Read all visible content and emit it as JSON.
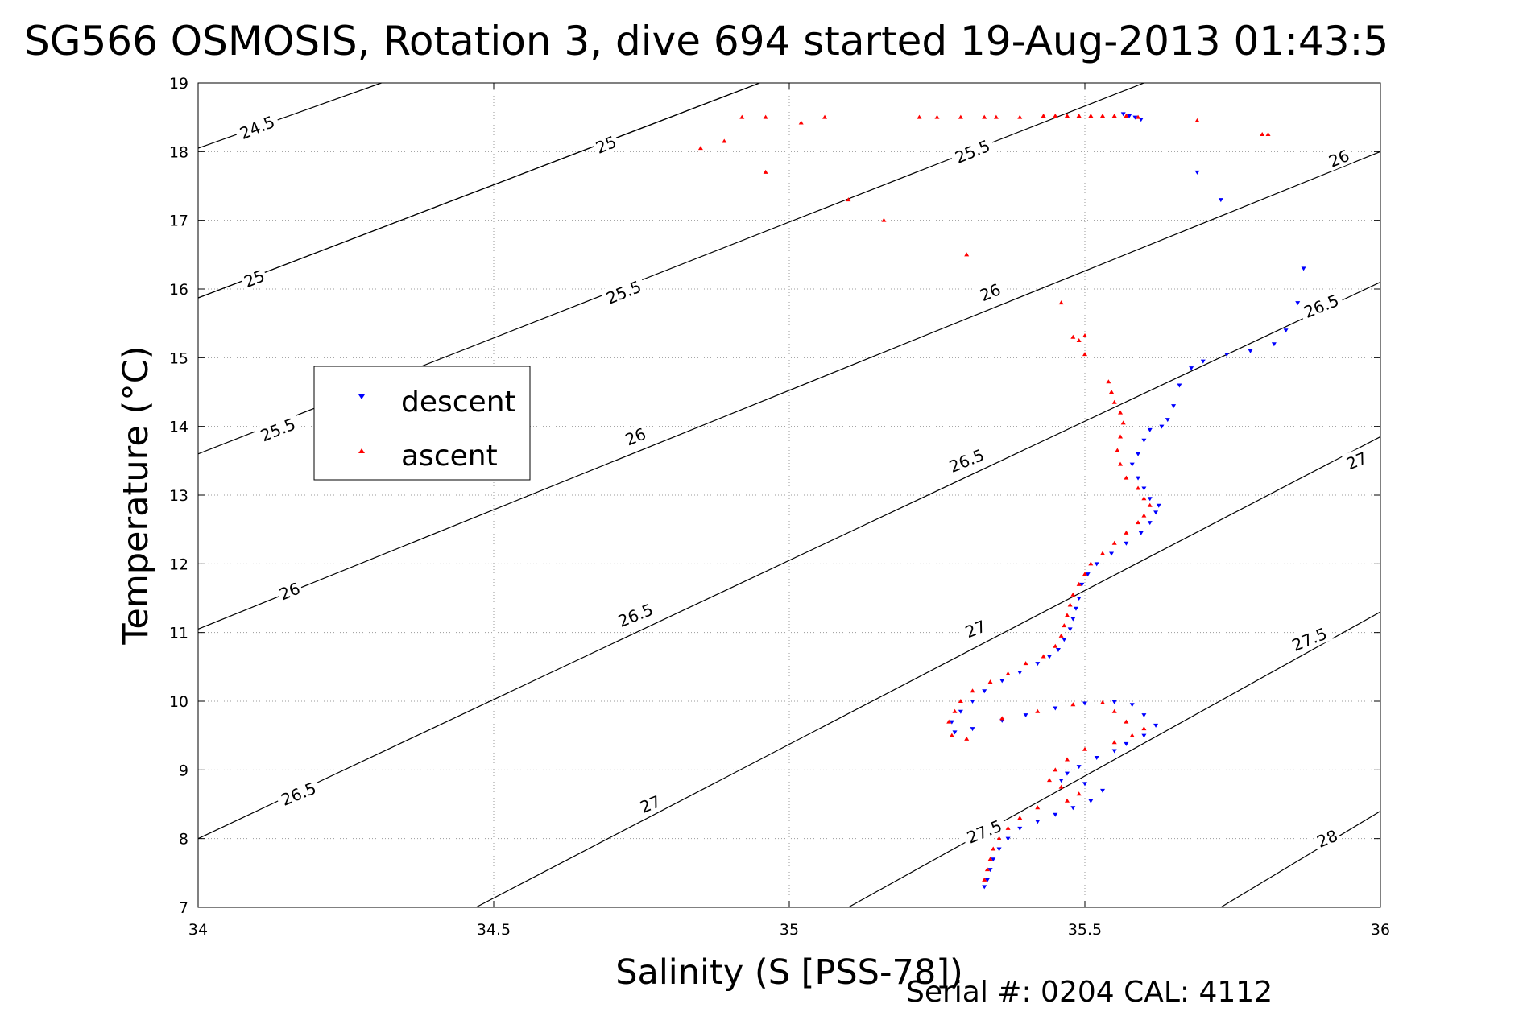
{
  "chart_data": {
    "type": "scatter",
    "title": "SG566 OSMOSIS, Rotation 3, dive 694 started 19-Aug-2013 01:43:5",
    "xlabel": "Salinity (S [PSS-78])",
    "ylabel": "Temperature (°C)",
    "xlim": [
      34,
      36
    ],
    "ylim": [
      7,
      19
    ],
    "xticks": [
      34,
      34.5,
      35,
      35.5,
      36
    ],
    "xtick_labels": [
      "34",
      "34.5",
      "35",
      "35.5",
      "36"
    ],
    "yticks": [
      7,
      8,
      9,
      10,
      11,
      12,
      13,
      14,
      15,
      16,
      17,
      18,
      19
    ],
    "ytick_labels": [
      "7",
      "8",
      "9",
      "10",
      "11",
      "12",
      "13",
      "14",
      "15",
      "16",
      "17",
      "18",
      "19"
    ],
    "grid": true,
    "legend_position": "left",
    "density_contours": {
      "levels": [
        24.5,
        25,
        25.5,
        26,
        26.5,
        27,
        27.5,
        28
      ],
      "lines": [
        {
          "level": 24.5,
          "points": [
            [
              34.0,
              18.05
            ],
            [
              34.31,
              19.0
            ]
          ]
        },
        {
          "level": 25,
          "points": [
            [
              34.0,
              15.87
            ],
            [
              34.95,
              19.0
            ]
          ]
        },
        {
          "level": 25,
          "points": [
            [
              34.0,
              15.87
            ],
            [
              34.95,
              19.0
            ]
          ]
        },
        {
          "level": 25.5,
          "points": [
            [
              34.0,
              13.6
            ],
            [
              35.6,
              19.0
            ]
          ]
        },
        {
          "level": 26,
          "points": [
            [
              34.0,
              11.05
            ],
            [
              36.0,
              18.0
            ]
          ]
        },
        {
          "level": 26.5,
          "points": [
            [
              34.0,
              8.0
            ],
            [
              36.0,
              16.1
            ]
          ]
        },
        {
          "level": 27,
          "points": [
            [
              34.47,
              7.0
            ],
            [
              36.0,
              13.85
            ]
          ]
        },
        {
          "level": 27.5,
          "points": [
            [
              35.1,
              7.0
            ],
            [
              36.0,
              11.3
            ]
          ]
        },
        {
          "level": 28,
          "points": [
            [
              35.73,
              7.0
            ],
            [
              36.0,
              8.4
            ]
          ]
        }
      ],
      "labels": [
        {
          "text": "24.5",
          "s": 34.1,
          "t": 18.35
        },
        {
          "text": "25",
          "s": 34.69,
          "t": 18.1
        },
        {
          "text": "25",
          "s": 34.095,
          "t": 16.15
        },
        {
          "text": "25.5",
          "s": 35.31,
          "t": 18.0
        },
        {
          "text": "25.5",
          "s": 34.72,
          "t": 15.95
        },
        {
          "text": "25.5",
          "s": 34.135,
          "t": 13.95
        },
        {
          "text": "26",
          "s": 35.93,
          "t": 17.9
        },
        {
          "text": "26",
          "s": 35.34,
          "t": 15.95
        },
        {
          "text": "26",
          "s": 34.74,
          "t": 13.85
        },
        {
          "text": "26",
          "s": 34.155,
          "t": 11.6
        },
        {
          "text": "26.5",
          "s": 35.9,
          "t": 15.75
        },
        {
          "text": "26.5",
          "s": 35.3,
          "t": 13.5
        },
        {
          "text": "26.5",
          "s": 34.74,
          "t": 11.25
        },
        {
          "text": "26.5",
          "s": 34.17,
          "t": 8.65
        },
        {
          "text": "27",
          "s": 35.96,
          "t": 13.5
        },
        {
          "text": "27",
          "s": 35.315,
          "t": 11.05
        },
        {
          "text": "27",
          "s": 34.765,
          "t": 8.5
        },
        {
          "text": "27.5",
          "s": 35.88,
          "t": 10.9
        },
        {
          "text": "27.5",
          "s": 35.33,
          "t": 8.1
        },
        {
          "text": "28",
          "s": 35.91,
          "t": 8.0
        }
      ]
    },
    "series": [
      {
        "name": "descent",
        "color": "#0000ff",
        "marker": "triangle-down",
        "points": [
          [
            35.565,
            18.55
          ],
          [
            35.575,
            18.52
          ],
          [
            35.585,
            18.5
          ],
          [
            35.595,
            18.47
          ],
          [
            35.69,
            17.7
          ],
          [
            35.73,
            17.3
          ],
          [
            35.87,
            16.3
          ],
          [
            35.86,
            15.8
          ],
          [
            35.84,
            15.4
          ],
          [
            35.82,
            15.2
          ],
          [
            35.78,
            15.1
          ],
          [
            35.74,
            15.05
          ],
          [
            35.7,
            14.95
          ],
          [
            35.68,
            14.85
          ],
          [
            35.66,
            14.6
          ],
          [
            35.65,
            14.3
          ],
          [
            35.64,
            14.1
          ],
          [
            35.63,
            14.0
          ],
          [
            35.61,
            13.95
          ],
          [
            35.6,
            13.8
          ],
          [
            35.59,
            13.6
          ],
          [
            35.58,
            13.45
          ],
          [
            35.59,
            13.25
          ],
          [
            35.6,
            13.1
          ],
          [
            35.61,
            12.95
          ],
          [
            35.625,
            12.85
          ],
          [
            35.62,
            12.75
          ],
          [
            35.61,
            12.6
          ],
          [
            35.595,
            12.45
          ],
          [
            35.57,
            12.3
          ],
          [
            35.545,
            12.15
          ],
          [
            35.52,
            12.0
          ],
          [
            35.505,
            11.85
          ],
          [
            35.495,
            11.7
          ],
          [
            35.49,
            11.5
          ],
          [
            35.485,
            11.35
          ],
          [
            35.48,
            11.2
          ],
          [
            35.475,
            11.05
          ],
          [
            35.465,
            10.9
          ],
          [
            35.455,
            10.75
          ],
          [
            35.44,
            10.65
          ],
          [
            35.42,
            10.55
          ],
          [
            35.39,
            10.42
          ],
          [
            35.36,
            10.3
          ],
          [
            35.33,
            10.15
          ],
          [
            35.31,
            10.0
          ],
          [
            35.29,
            9.85
          ],
          [
            35.275,
            9.7
          ],
          [
            35.28,
            9.55
          ],
          [
            35.31,
            9.6
          ],
          [
            35.36,
            9.72
          ],
          [
            35.4,
            9.8
          ],
          [
            35.45,
            9.9
          ],
          [
            35.5,
            9.97
          ],
          [
            35.55,
            9.99
          ],
          [
            35.58,
            9.95
          ],
          [
            35.6,
            9.8
          ],
          [
            35.62,
            9.65
          ],
          [
            35.6,
            9.5
          ],
          [
            35.57,
            9.38
          ],
          [
            35.55,
            9.28
          ],
          [
            35.52,
            9.18
          ],
          [
            35.49,
            9.05
          ],
          [
            35.47,
            8.95
          ],
          [
            35.46,
            8.85
          ],
          [
            35.5,
            8.8
          ],
          [
            35.53,
            8.7
          ],
          [
            35.51,
            8.55
          ],
          [
            35.48,
            8.45
          ],
          [
            35.45,
            8.35
          ],
          [
            35.42,
            8.25
          ],
          [
            35.39,
            8.15
          ],
          [
            35.37,
            8.0
          ],
          [
            35.355,
            7.85
          ],
          [
            35.345,
            7.7
          ],
          [
            35.34,
            7.55
          ],
          [
            35.335,
            7.4
          ],
          [
            35.33,
            7.3
          ]
        ]
      },
      {
        "name": "ascent",
        "color": "#ff0000",
        "marker": "triangle-up",
        "points": [
          [
            34.85,
            18.05
          ],
          [
            34.89,
            18.15
          ],
          [
            34.92,
            18.5
          ],
          [
            34.96,
            18.5
          ],
          [
            34.96,
            17.7
          ],
          [
            35.02,
            18.42
          ],
          [
            35.06,
            18.5
          ],
          [
            35.1,
            17.3
          ],
          [
            35.16,
            17.0
          ],
          [
            35.22,
            18.5
          ],
          [
            35.25,
            18.5
          ],
          [
            35.29,
            18.5
          ],
          [
            35.3,
            16.5
          ],
          [
            35.33,
            18.5
          ],
          [
            35.35,
            18.5
          ],
          [
            35.39,
            18.5
          ],
          [
            35.43,
            18.52
          ],
          [
            35.45,
            18.52
          ],
          [
            35.47,
            18.52
          ],
          [
            35.49,
            18.52
          ],
          [
            35.51,
            18.52
          ],
          [
            35.53,
            18.52
          ],
          [
            35.55,
            18.52
          ],
          [
            35.57,
            18.52
          ],
          [
            35.59,
            18.5
          ],
          [
            35.69,
            18.45
          ],
          [
            35.8,
            18.25
          ],
          [
            35.81,
            18.25
          ],
          [
            35.46,
            15.8
          ],
          [
            35.48,
            15.3
          ],
          [
            35.49,
            15.25
          ],
          [
            35.5,
            15.32
          ],
          [
            35.5,
            15.05
          ],
          [
            35.54,
            14.65
          ],
          [
            35.545,
            14.5
          ],
          [
            35.55,
            14.35
          ],
          [
            35.56,
            14.2
          ],
          [
            35.565,
            14.05
          ],
          [
            35.56,
            13.85
          ],
          [
            35.555,
            13.65
          ],
          [
            35.56,
            13.45
          ],
          [
            35.57,
            13.25
          ],
          [
            35.59,
            13.1
          ],
          [
            35.6,
            12.95
          ],
          [
            35.61,
            12.85
          ],
          [
            35.6,
            12.7
          ],
          [
            35.59,
            12.6
          ],
          [
            35.57,
            12.45
          ],
          [
            35.55,
            12.3
          ],
          [
            35.53,
            12.15
          ],
          [
            35.51,
            12.0
          ],
          [
            35.5,
            11.85
          ],
          [
            35.49,
            11.7
          ],
          [
            35.48,
            11.55
          ],
          [
            35.475,
            11.4
          ],
          [
            35.47,
            11.25
          ],
          [
            35.465,
            11.1
          ],
          [
            35.46,
            10.95
          ],
          [
            35.45,
            10.8
          ],
          [
            35.43,
            10.65
          ],
          [
            35.4,
            10.55
          ],
          [
            35.37,
            10.4
          ],
          [
            35.34,
            10.28
          ],
          [
            35.31,
            10.15
          ],
          [
            35.29,
            10.0
          ],
          [
            35.28,
            9.85
          ],
          [
            35.27,
            9.7
          ],
          [
            35.275,
            9.5
          ],
          [
            35.3,
            9.45
          ],
          [
            35.36,
            9.75
          ],
          [
            35.42,
            9.85
          ],
          [
            35.48,
            9.95
          ],
          [
            35.53,
            9.98
          ],
          [
            35.55,
            9.85
          ],
          [
            35.57,
            9.7
          ],
          [
            35.6,
            9.6
          ],
          [
            35.58,
            9.5
          ],
          [
            35.55,
            9.4
          ],
          [
            35.5,
            9.3
          ],
          [
            35.47,
            9.15
          ],
          [
            35.45,
            9.0
          ],
          [
            35.44,
            8.85
          ],
          [
            35.46,
            8.75
          ],
          [
            35.49,
            8.65
          ],
          [
            35.47,
            8.55
          ],
          [
            35.42,
            8.45
          ],
          [
            35.39,
            8.3
          ],
          [
            35.37,
            8.15
          ],
          [
            35.355,
            8.0
          ],
          [
            35.345,
            7.85
          ],
          [
            35.34,
            7.7
          ],
          [
            35.335,
            7.55
          ],
          [
            35.33,
            7.4
          ]
        ]
      }
    ]
  },
  "legend": {
    "descent_label": "descent",
    "ascent_label": "ascent"
  },
  "footer": {
    "serial_label": "Serial #: 0204  CAL: 4112"
  }
}
